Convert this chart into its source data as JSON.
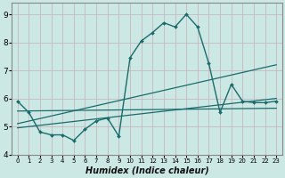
{
  "xlabel": "Humidex (Indice chaleur)",
  "bg_color": "#cce8e4",
  "grid_color_h": "#c8b8c0",
  "grid_color_v": "#c8b8c0",
  "line_color": "#1a6b6b",
  "spine_color": "#888888",
  "xlim": [
    -0.5,
    23.5
  ],
  "ylim": [
    4.0,
    9.4
  ],
  "yticks": [
    4,
    5,
    6,
    7,
    8,
    9
  ],
  "xticks": [
    0,
    1,
    2,
    3,
    4,
    5,
    6,
    7,
    8,
    9,
    10,
    11,
    12,
    13,
    14,
    15,
    16,
    17,
    18,
    19,
    20,
    21,
    22,
    23
  ],
  "series": [
    {
      "x": [
        0,
        1,
        2,
        3,
        4,
        5,
        6,
        7,
        8,
        9,
        10,
        11,
        12,
        13,
        14,
        15,
        16,
        17,
        18,
        19,
        20,
        21,
        22,
        23
      ],
      "y": [
        5.9,
        5.5,
        4.8,
        4.7,
        4.7,
        4.5,
        4.9,
        5.2,
        5.3,
        4.65,
        7.45,
        8.05,
        8.35,
        8.7,
        8.55,
        9.0,
        8.55,
        7.25,
        5.5,
        6.5,
        5.9,
        5.85,
        5.85,
        5.9
      ],
      "markers": true
    },
    {
      "x": [
        0,
        23
      ],
      "y": [
        5.55,
        5.65
      ],
      "markers": false
    },
    {
      "x": [
        0,
        23
      ],
      "y": [
        5.1,
        7.2
      ],
      "markers": false
    },
    {
      "x": [
        0,
        23
      ],
      "y": [
        4.95,
        6.0
      ],
      "markers": false
    }
  ]
}
